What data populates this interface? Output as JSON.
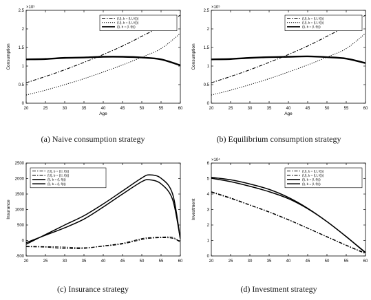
{
  "captions": [
    "(a)  Naive consumption strategy",
    "(b)  Equilibrium consumption strategy",
    "(c)  Insurance strategy",
    "(d)  Investment strategy"
  ],
  "chart_data": [
    {
      "type": "line",
      "xlabel": "Age",
      "ylabel": "Consumption",
      "exponent": "×10⁵",
      "xlim": [
        20,
        60
      ],
      "ylim": [
        0,
        2.5
      ],
      "xticks": [
        20,
        25,
        30,
        35,
        40,
        45,
        50,
        55,
        60
      ],
      "yticks": [
        0,
        0.5,
        1,
        1.5,
        2,
        2.5
      ],
      "ytick_labels": [
        "0",
        "0.5",
        "1",
        "1.5",
        "2",
        "2.5"
      ],
      "x": [
        20,
        25,
        30,
        35,
        40,
        45,
        50,
        55,
        60
      ],
      "legend_position": "top-right",
      "series": [
        {
          "name": "(l,l), b = (l,l, f(t))",
          "style": "dashdot",
          "values": [
            0.55,
            0.72,
            0.9,
            1.1,
            1.31,
            1.54,
            1.8,
            2.07,
            2.37
          ]
        },
        {
          "name": "(l,l), b = (l,l, f(t))",
          "style": "dotted",
          "values": [
            0.22,
            0.35,
            0.5,
            0.66,
            0.84,
            1.03,
            1.24,
            1.47,
            1.88
          ]
        },
        {
          "name": "(l), b = (l, f(t))",
          "style": "solid-thick",
          "values": [
            1.18,
            1.19,
            1.22,
            1.23,
            1.25,
            1.25,
            1.23,
            1.18,
            1.02
          ]
        }
      ]
    },
    {
      "type": "line",
      "xlabel": "Age",
      "ylabel": "Consumption",
      "exponent": "×10⁵",
      "xlim": [
        20,
        60
      ],
      "ylim": [
        0,
        2.5
      ],
      "xticks": [
        20,
        25,
        30,
        35,
        40,
        45,
        50,
        55,
        60
      ],
      "yticks": [
        0,
        0.5,
        1,
        1.5,
        2,
        2.5
      ],
      "ytick_labels": [
        "0",
        "0.5",
        "1",
        "1.5",
        "2",
        "2.5"
      ],
      "x": [
        20,
        25,
        30,
        35,
        40,
        45,
        50,
        55,
        60
      ],
      "legend_position": "top-right",
      "series": [
        {
          "name": "(l,l), b = (l,l, f(t))",
          "style": "dashdot",
          "values": [
            0.55,
            0.72,
            0.9,
            1.1,
            1.31,
            1.54,
            1.8,
            2.07,
            2.37
          ]
        },
        {
          "name": "(l,l), b = (l,l, f(t))",
          "style": "dotted",
          "values": [
            0.22,
            0.35,
            0.5,
            0.66,
            0.84,
            1.03,
            1.24,
            1.47,
            1.88
          ]
        },
        {
          "name": "(l), b = (l, f(t))",
          "style": "solid-thick",
          "values": [
            1.18,
            1.19,
            1.22,
            1.24,
            1.25,
            1.26,
            1.24,
            1.2,
            1.08
          ]
        }
      ]
    },
    {
      "type": "line",
      "xlabel": "",
      "ylabel": "Insurance",
      "exponent": "",
      "xlim": [
        20,
        60
      ],
      "ylim": [
        -500,
        2500
      ],
      "xticks": [
        20,
        25,
        30,
        35,
        40,
        45,
        50,
        55,
        60
      ],
      "yticks": [
        -500,
        0,
        500,
        1000,
        1500,
        2000,
        2500
      ],
      "ytick_labels": [
        "-500",
        "0",
        "500",
        "1000",
        "1500",
        "2000",
        "2500"
      ],
      "x": [
        20,
        25,
        30,
        35,
        40,
        45,
        50,
        52,
        55,
        58,
        60
      ],
      "legend_position": "top-left",
      "series": [
        {
          "name": "(l,l), b = (l,l, f(t))",
          "style": "dashdot",
          "values": [
            -200,
            -215,
            -260,
            -255,
            -175,
            -90,
            60,
            90,
            110,
            100,
            -50
          ]
        },
        {
          "name": "(l,l), b = (l,l, f(t))",
          "style": "dashdot",
          "values": [
            -190,
            -200,
            -215,
            -235,
            -185,
            -110,
            30,
            70,
            90,
            70,
            -50
          ]
        },
        {
          "name": "(l), b = (l, f(t))",
          "style": "solid",
          "values": [
            -120,
            190,
            500,
            800,
            1180,
            1600,
            2020,
            2120,
            2010,
            1500,
            50
          ]
        },
        {
          "name": "(l), b = (l, f(t))",
          "style": "solid",
          "values": [
            -70,
            170,
            410,
            690,
            1080,
            1500,
            1900,
            1960,
            1830,
            1320,
            50
          ]
        }
      ]
    },
    {
      "type": "line",
      "xlabel": "",
      "ylabel": "Investment",
      "exponent": "×10⁴",
      "xlim": [
        20,
        60
      ],
      "ylim": [
        0,
        6
      ],
      "xticks": [
        20,
        25,
        30,
        35,
        40,
        45,
        50,
        55,
        60
      ],
      "yticks": [
        0,
        1,
        2,
        3,
        4,
        5,
        6
      ],
      "ytick_labels": [
        "0",
        "1",
        "2",
        "3",
        "4",
        "5",
        "6"
      ],
      "x": [
        20,
        25,
        30,
        35,
        40,
        45,
        50,
        55,
        60
      ],
      "legend_position": "top-right",
      "series": [
        {
          "name": "(l,l), b = (l,l, f(t))",
          "style": "dashdot",
          "values": [
            4.15,
            3.75,
            3.3,
            2.85,
            2.35,
            1.8,
            1.25,
            0.7,
            0.18
          ]
        },
        {
          "name": "(l,l), b = (l,l, f(t))",
          "style": "dashdot",
          "values": [
            4.12,
            3.72,
            3.28,
            2.83,
            2.33,
            1.79,
            1.23,
            0.68,
            0.15
          ]
        },
        {
          "name": "(l), b = (l, f(t))",
          "style": "solid",
          "values": [
            5.08,
            4.92,
            4.65,
            4.3,
            3.78,
            3.08,
            2.22,
            1.25,
            0.23
          ]
        },
        {
          "name": "(l), b = (l, f(t))",
          "style": "solid",
          "values": [
            5.02,
            4.8,
            4.5,
            4.15,
            3.7,
            3.05,
            2.22,
            1.25,
            0.2
          ]
        }
      ]
    }
  ]
}
